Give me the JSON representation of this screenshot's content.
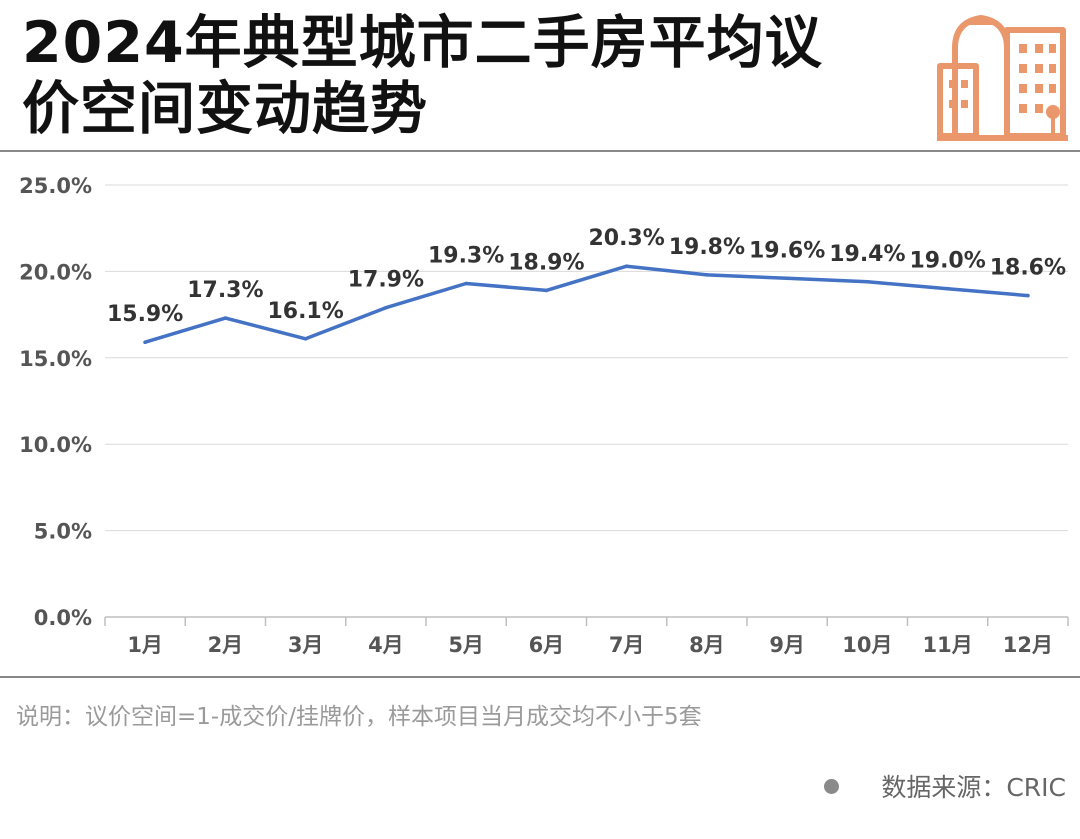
{
  "header": {
    "title_line1": "2024年典型城市二手房平均议",
    "title_line2": "价空间变动趋势",
    "logo_icon": "city-buildings-icon",
    "accent_color": "#e9976b"
  },
  "chart_data": {
    "type": "line",
    "title": "2024年典型城市二手房平均议价空间变动趋势",
    "categories": [
      "1月",
      "2月",
      "3月",
      "4月",
      "5月",
      "6月",
      "7月",
      "8月",
      "9月",
      "10月",
      "11月",
      "12月"
    ],
    "series": [
      {
        "values": [
          15.9,
          17.3,
          16.1,
          17.9,
          19.3,
          18.9,
          20.3,
          19.8,
          19.6,
          19.4,
          19.0,
          18.6
        ],
        "color": "#4472c4"
      }
    ],
    "data_labels": [
      "15.9%",
      "17.3%",
      "16.1%",
      "17.9%",
      "19.3%",
      "18.9%",
      "20.3%",
      "19.8%",
      "19.6%",
      "19.4%",
      "19.0%",
      "18.6%"
    ],
    "y_ticks": [
      0,
      5,
      10,
      15,
      20,
      25
    ],
    "y_tick_labels": [
      "0.0%",
      "5.0%",
      "10.0%",
      "15.0%",
      "20.0%",
      "25.0%"
    ],
    "ylim": [
      0,
      25
    ],
    "grid": true,
    "legend": "none"
  },
  "footer": {
    "note": "说明：议价空间=1-成交价/挂牌价，样本项目当月成交均不小于5套",
    "source": "数据来源：CRIC"
  }
}
